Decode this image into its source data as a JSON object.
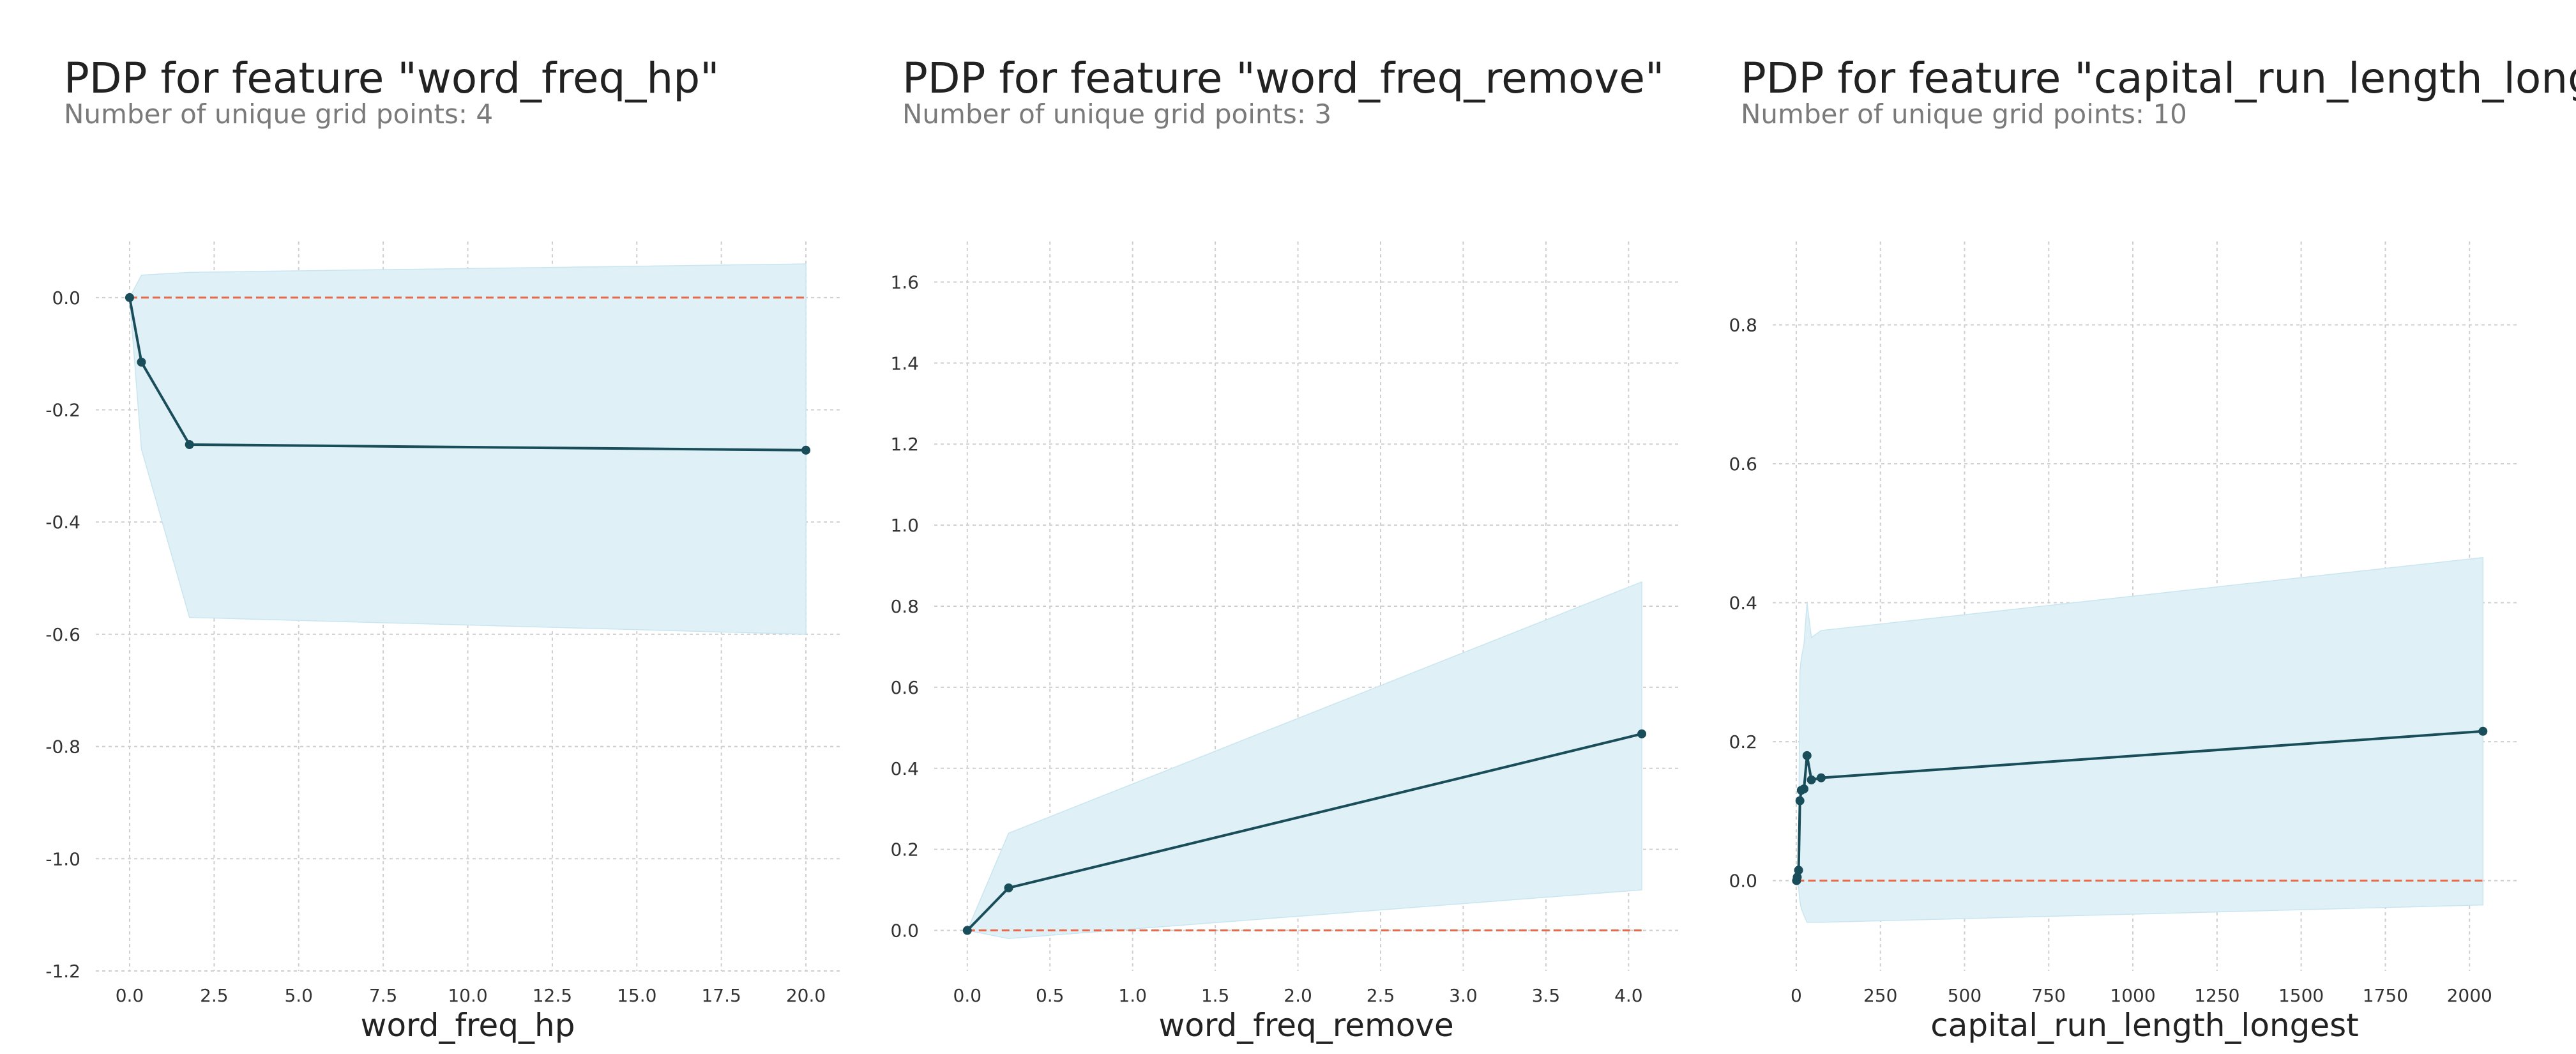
{
  "chart_data": [
    {
      "type": "line",
      "title": "PDP for feature \"word_freq_hp\"",
      "subtitle": "Number of unique grid points: 4",
      "xlabel": "word_freq_hp",
      "ylabel": "",
      "xlim": [
        -1.0,
        21.0
      ],
      "ylim": [
        -1.2,
        0.1
      ],
      "xticks": [
        "0.0",
        "2.5",
        "5.0",
        "7.5",
        "10.0",
        "12.5",
        "15.0",
        "17.5",
        "20.0"
      ],
      "yticks": [
        "0.0",
        "-0.2",
        "-0.4",
        "-0.6",
        "-0.8",
        "-1.0",
        "-1.2"
      ],
      "grid": true,
      "x": [
        0.0,
        0.35,
        1.77,
        20.0
      ],
      "values": [
        0.0,
        -0.115,
        -0.262,
        -0.272
      ],
      "band_upper": [
        0.0,
        0.04,
        0.045,
        0.06
      ],
      "band_lower": [
        0.0,
        -0.27,
        -0.57,
        -0.6
      ],
      "baseline": 0.0,
      "colors": {
        "line": "#1a4d5a",
        "band": "#dff0f6",
        "baseline": "#e8694a"
      }
    },
    {
      "type": "line",
      "title": "PDP for feature \"word_freq_remove\"",
      "subtitle": "Number of unique grid points: 3",
      "xlabel": "word_freq_remove",
      "ylabel": "",
      "xlim": [
        -0.2,
        4.3
      ],
      "ylim": [
        -0.1,
        1.7
      ],
      "xticks": [
        "0.0",
        "0.5",
        "1.0",
        "1.5",
        "2.0",
        "2.5",
        "3.0",
        "3.5",
        "4.0"
      ],
      "yticks": [
        "0.0",
        "0.2",
        "0.4",
        "0.6",
        "0.8",
        "1.0",
        "1.2",
        "1.4",
        "1.6"
      ],
      "grid": true,
      "x": [
        0.0,
        0.25,
        4.08
      ],
      "values": [
        0.0,
        0.105,
        0.485
      ],
      "band_upper": [
        0.0,
        0.24,
        0.86
      ],
      "band_lower": [
        0.0,
        -0.02,
        0.1
      ],
      "baseline": 0.0,
      "colors": {
        "line": "#1a4d5a",
        "band": "#dff0f6",
        "baseline": "#e8694a"
      }
    },
    {
      "type": "line",
      "title": "PDP for feature \"capital_run_length_longest\"",
      "subtitle": "Number of unique grid points: 10",
      "xlabel": "capital_run_length_longest",
      "ylabel": "",
      "xlim": [
        -70,
        2140
      ],
      "ylim": [
        -0.13,
        0.92
      ],
      "xticks": [
        "0",
        "250",
        "500",
        "750",
        "1000",
        "1250",
        "1500",
        "1750",
        "2000"
      ],
      "yticks": [
        "0.0",
        "0.2",
        "0.4",
        "0.6",
        "0.8"
      ],
      "grid": true,
      "x": [
        1,
        3,
        7,
        11,
        15,
        23,
        32,
        45,
        74,
        2040
      ],
      "values": [
        0.0,
        0.005,
        0.015,
        0.115,
        0.13,
        0.132,
        0.18,
        0.145,
        0.148,
        0.215
      ],
      "band_upper": [
        0.0,
        0.0,
        0.05,
        0.3,
        0.32,
        0.34,
        0.4,
        0.35,
        0.36,
        0.465
      ],
      "band_lower": [
        0.0,
        0.0,
        -0.01,
        -0.03,
        -0.04,
        -0.05,
        -0.06,
        -0.06,
        -0.06,
        -0.035
      ],
      "baseline": 0.0,
      "colors": {
        "line": "#1a4d5a",
        "band": "#dff0f6",
        "baseline": "#e8694a"
      }
    }
  ]
}
